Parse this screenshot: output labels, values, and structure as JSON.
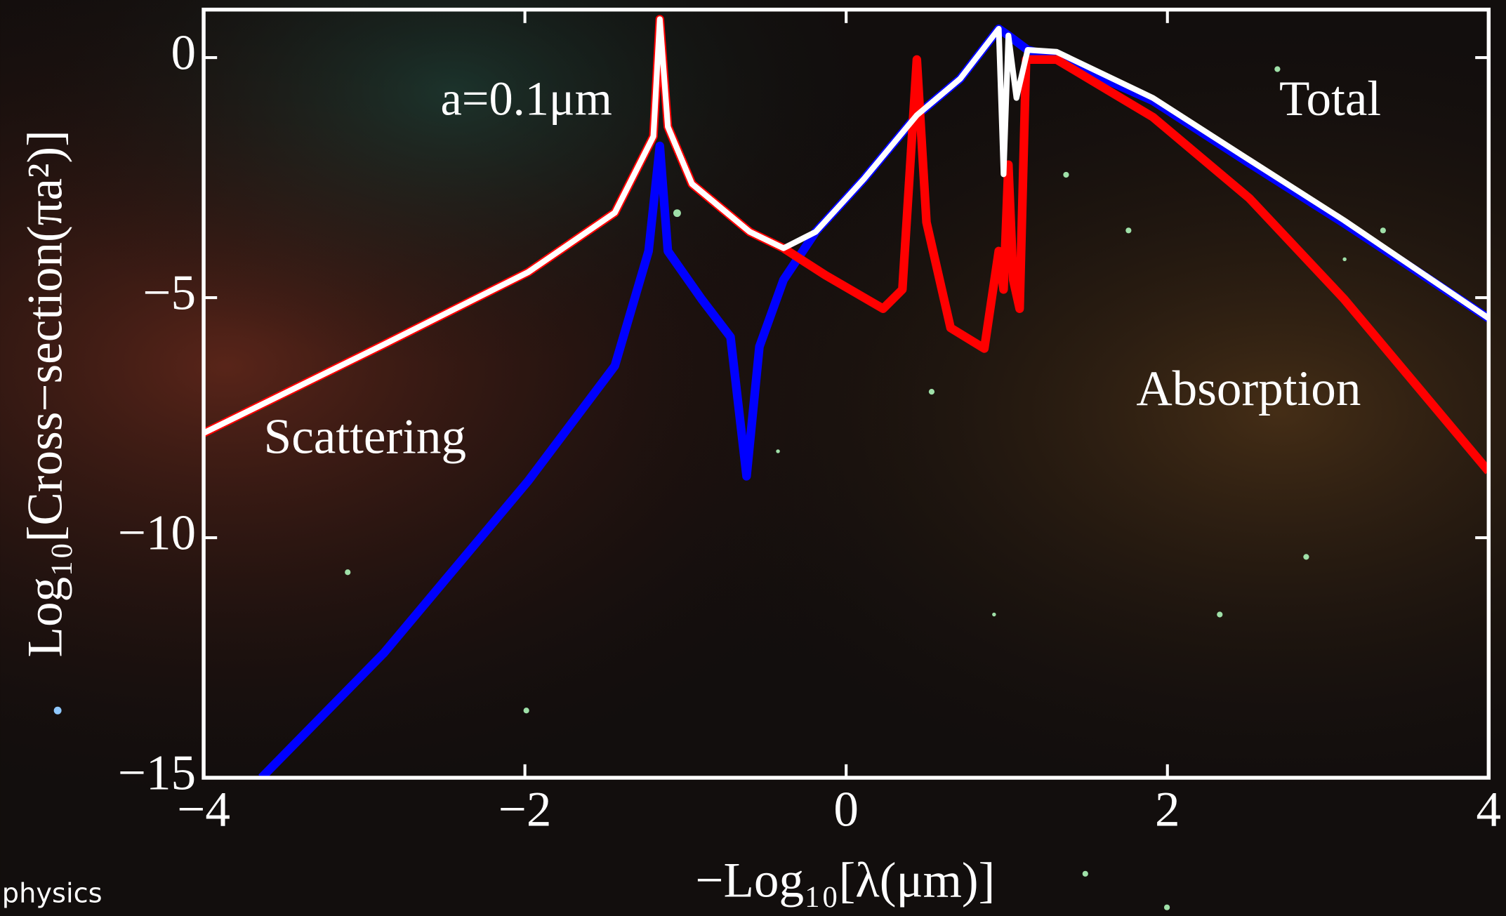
{
  "chart_data": {
    "type": "line",
    "ylabel": "Log₁₀[Cross−section(πa²)]",
    "xlabel": "−Log₁₀[λ(μm)]",
    "annotation": "a=0.1μm",
    "watermark": "physics",
    "xlim": [
      -4,
      4
    ],
    "xticks": [
      {
        "value": -4,
        "label": "−4"
      },
      {
        "value": -2,
        "label": "−2"
      },
      0,
      2,
      4
    ],
    "ylim": [
      -15,
      1
    ],
    "yticks": [
      0,
      {
        "value": -5,
        "label": "−5"
      },
      {
        "value": -10,
        "label": "−10"
      },
      {
        "value": -15,
        "label": "−15"
      }
    ],
    "series": [
      {
        "name": "Scattering",
        "color": "#0000ff",
        "x": [
          -3.64,
          -2.88,
          -1.98,
          -1.44,
          -1.23,
          -1.16,
          -1.11,
          -0.9,
          -0.72,
          -0.62,
          -0.54,
          -0.39,
          -0.19,
          0.11,
          0.44,
          0.71,
          0.95,
          1.01,
          1.13,
          1.31,
          1.91,
          2.51,
          3.1,
          4.0
        ],
        "values": [
          -15,
          -12.41,
          -8.82,
          -6.42,
          -4.03,
          -1.84,
          -4.03,
          -5.03,
          -5.82,
          -8.72,
          -6.02,
          -4.63,
          -3.63,
          -2.53,
          -1.2,
          -0.44,
          0.6,
          0.46,
          0.16,
          0.0,
          -0.9,
          -2.2,
          -3.45,
          -5.43
        ]
      },
      {
        "name": "Absorption",
        "color": "#ff0000",
        "x": [
          -4.0,
          -2.88,
          -1.98,
          -1.44,
          -1.2,
          -1.16,
          -1.11,
          -0.96,
          -0.6,
          -0.39,
          -0.13,
          0.23,
          0.35,
          0.44,
          0.5,
          0.65,
          0.86,
          0.95,
          0.98,
          1.01,
          1.04,
          1.08,
          1.12,
          1.31,
          1.91,
          2.51,
          3.1,
          4.0
        ],
        "values": [
          -7.82,
          -5.98,
          -4.47,
          -3.23,
          -1.64,
          0.8,
          -1.44,
          -2.63,
          -3.63,
          -3.97,
          -4.53,
          -5.23,
          -4.83,
          -0.04,
          -3.43,
          -5.63,
          -6.06,
          -4.03,
          -4.83,
          -2.23,
          -4.63,
          -5.23,
          -0.04,
          -0.04,
          -1.24,
          -2.93,
          -5.03,
          -8.62
        ]
      },
      {
        "name": "Total",
        "color": "#ffffff",
        "x": [
          -4.0,
          -2.88,
          -1.98,
          -1.44,
          -1.2,
          -1.16,
          -1.11,
          -0.96,
          -0.6,
          -0.39,
          -0.19,
          0.11,
          0.44,
          0.71,
          0.95,
          0.98,
          1.01,
          1.06,
          1.13,
          1.31,
          1.91,
          2.51,
          3.1,
          4.0
        ],
        "values": [
          -7.82,
          -5.98,
          -4.47,
          -3.23,
          -1.64,
          0.8,
          -1.44,
          -2.63,
          -3.63,
          -3.97,
          -3.63,
          -2.53,
          -1.2,
          -0.44,
          0.6,
          -2.43,
          0.46,
          -0.84,
          0.16,
          0.12,
          -0.84,
          -2.13,
          -3.39,
          -5.43
        ]
      }
    ]
  }
}
